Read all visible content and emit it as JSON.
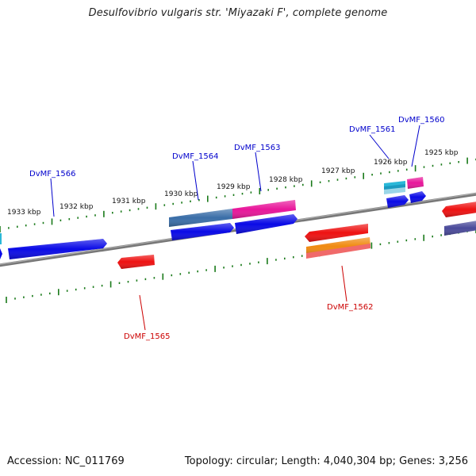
{
  "title": "Desulfovibrio vulgaris str. 'Miyazaki F', complete genome",
  "footer": {
    "accession": "Accession: NC_011769",
    "info": "Topology: circular; Length: 4,040,304 bp; Genes: 3,256"
  },
  "colors": {
    "forward_label": "#0000cc",
    "reverse_label": "#cc0000",
    "backbone": "#777777",
    "tick": "#1a7a1a",
    "blue": "#0a0ae6",
    "red": "#ee1111",
    "magenta": "#e8169a",
    "steelblue": "#3a6ea8",
    "cyan": "#2ab8d8",
    "orange": "#f08a10",
    "salmon": "#f06a6a",
    "purple": "#4a4a9a"
  },
  "scale_labels": [
    "1933 kbp",
    "1932 kbp",
    "1931 kbp",
    "1930 kbp",
    "1929 kbp",
    "1928 kbp",
    "1927 kbp",
    "1926 kbp",
    "1925 kbp"
  ],
  "gene_labels": [
    {
      "text": "DvMF_1566",
      "strand": "forward"
    },
    {
      "text": "DvMF_1564",
      "strand": "forward"
    },
    {
      "text": "DvMF_1563",
      "strand": "forward"
    },
    {
      "text": "DvMF_1561",
      "strand": "forward"
    },
    {
      "text": "DvMF_1560",
      "strand": "forward"
    },
    {
      "text": "DvMF_1565",
      "strand": "reverse"
    },
    {
      "text": "DvMF_1562",
      "strand": "reverse"
    }
  ]
}
